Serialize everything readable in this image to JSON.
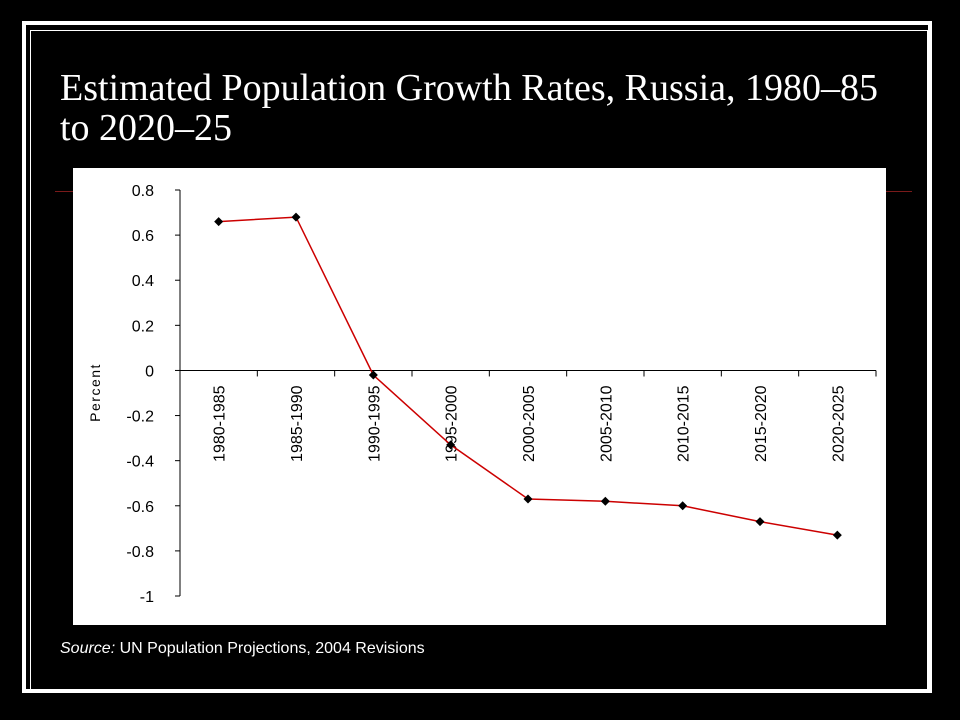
{
  "slide": {
    "title": "Estimated Population Growth Rates, Russia, 1980–85 to 2020–25",
    "source_label": "Source:",
    "source_text": " UN Population Projections, 2004 Revisions"
  },
  "colors": {
    "background": "#000000",
    "plot_background": "#ffffff",
    "line": "#cc0000",
    "marker": "#000000"
  },
  "chart_data": {
    "type": "line",
    "title": "",
    "xlabel": "",
    "ylabel": "Percent",
    "categories": [
      "1980-1985",
      "1985-1990",
      "1990-1995",
      "1995-2000",
      "2000-2005",
      "2005-2010",
      "2010-2015",
      "2015-2020",
      "2020-2025"
    ],
    "values": [
      0.66,
      0.68,
      -0.02,
      -0.33,
      -0.57,
      -0.58,
      -0.6,
      -0.67,
      -0.73
    ],
    "ylim": [
      -1,
      0.8
    ],
    "yticks": [
      0.8,
      0.6,
      0.4,
      0.2,
      0,
      -0.2,
      -0.4,
      -0.6,
      -0.8,
      -1
    ],
    "ytick_labels": [
      "0.8",
      "0.6",
      "0.4",
      "0.2",
      "0",
      "-0.2",
      "-0.4",
      "-0.6",
      "-0.8",
      "-1"
    ],
    "marker": "diamond",
    "grid": false,
    "legend": "none"
  }
}
